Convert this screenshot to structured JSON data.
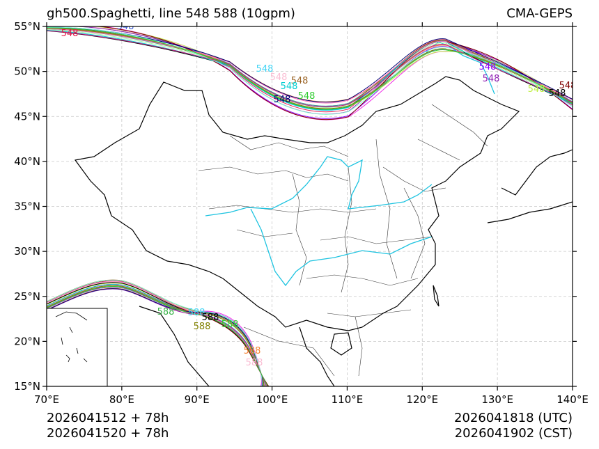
{
  "header": {
    "title": "gh500.Spaghetti, line 548 588 (10gpm)",
    "model": "CMA-GEPS"
  },
  "footer": {
    "init_utc": "2026041512 + 78h",
    "init_cst": "2026041520 + 78h",
    "valid_utc": "2026041818 (UTC)",
    "valid_cst": "2026041902 (CST)"
  },
  "axes": {
    "lat_labels": [
      "55°N",
      "50°N",
      "45°N",
      "40°N",
      "35°N",
      "30°N",
      "25°N",
      "20°N",
      "15°N"
    ],
    "lon_labels": [
      "70°E",
      "80°E",
      "90°E",
      "100°E",
      "110°E",
      "120°E",
      "130°E",
      "140°E"
    ]
  },
  "contour_labels": {
    "north": "548",
    "south": "588"
  },
  "colors": {
    "border": "#000000",
    "province": "#333333",
    "river": "#1cc3e0",
    "grid": "#c8c8c8",
    "members": [
      "#e6194b",
      "#3cb44b",
      "#8b00ff",
      "#4363d8",
      "#f58231",
      "#911eb4",
      "#42d4f4",
      "#f032e6",
      "#bfef45",
      "#fabed4",
      "#469990",
      "#000000",
      "#9a6324",
      "#a9f5a9",
      "#800000",
      "#00ced1",
      "#808000",
      "#ff69b4",
      "#000075",
      "#7fffd4",
      "#c71585",
      "#32cd32"
    ]
  }
}
